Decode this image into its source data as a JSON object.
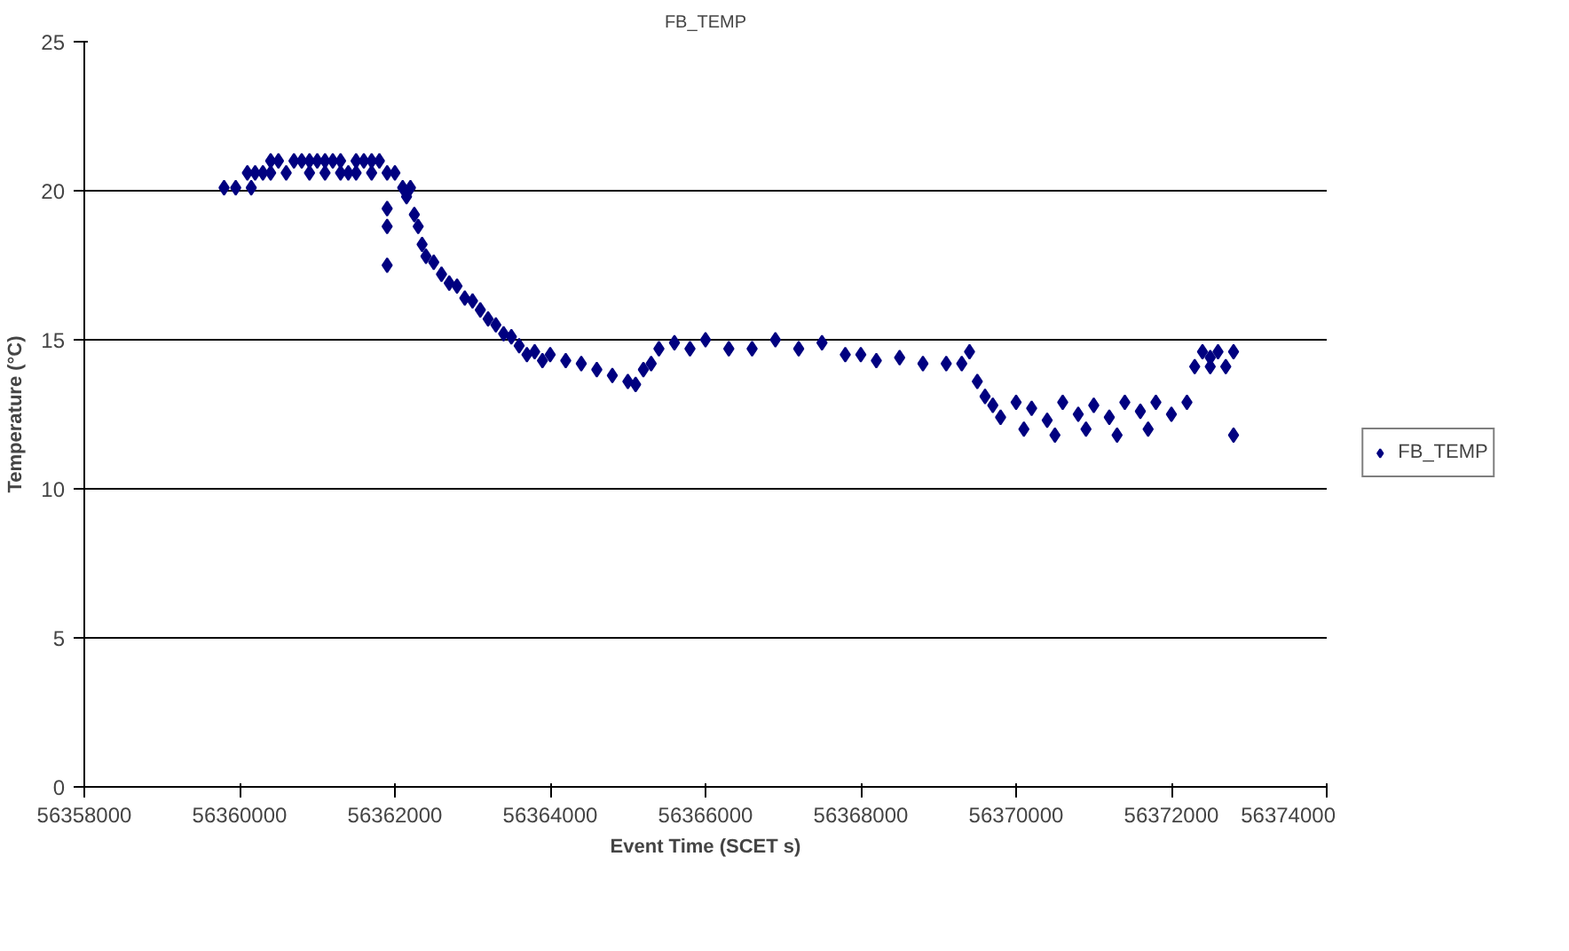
{
  "chart_data": {
    "type": "scatter",
    "title": "FB_TEMP",
    "xlabel": "Event Time (SCET s)",
    "ylabel": "Temperature (°C)",
    "xlim": [
      56358000,
      56374000
    ],
    "xticks": [
      56358000,
      56360000,
      56362000,
      56364000,
      56366000,
      56368000,
      56370000,
      56372000,
      56374000
    ],
    "ylim": [
      0,
      25
    ],
    "yticks": [
      0,
      5,
      10,
      15,
      20,
      25
    ],
    "grid": "y",
    "legend": "right",
    "marker": "diamond",
    "series": [
      {
        "name": "FB_TEMP",
        "color": "#000080",
        "x": [
          56359800,
          56359950,
          56360100,
          56360150,
          56360200,
          56360300,
          56360400,
          56360400,
          56360500,
          56360600,
          56360700,
          56360800,
          56360900,
          56361000,
          56361100,
          56361200,
          56361300,
          56361400,
          56361500,
          56361600,
          56361700,
          56361800,
          56360900,
          56361100,
          56361300,
          56361500,
          56361700,
          56361900,
          56361900,
          56361900,
          56361900,
          56362000,
          56362100,
          56362150,
          56362200,
          56362250,
          56362300,
          56362350,
          56362400,
          56362500,
          56362600,
          56362700,
          56362800,
          56362900,
          56363000,
          56363100,
          56363200,
          56363300,
          56363400,
          56363500,
          56363600,
          56363700,
          56363800,
          56363900,
          56364000,
          56364200,
          56364400,
          56364600,
          56364800,
          56365000,
          56365100,
          56365200,
          56365300,
          56365400,
          56365600,
          56365800,
          56366000,
          56366300,
          56366600,
          56366900,
          56367200,
          56367500,
          56367800,
          56368000,
          56368200,
          56368500,
          56368800,
          56369100,
          56369300,
          56369400,
          56369500,
          56369600,
          56369700,
          56369800,
          56370000,
          56370200,
          56370400,
          56370600,
          56370800,
          56371000,
          56371200,
          56371400,
          56371600,
          56371800,
          56372000,
          56372200,
          56370100,
          56370500,
          56370900,
          56371300,
          56371700,
          56372300,
          56372400,
          56372500,
          56372600,
          56372700,
          56372800,
          56372500,
          56372800
        ],
        "values": [
          20.1,
          20.1,
          20.6,
          20.1,
          20.6,
          20.6,
          20.6,
          21.0,
          21.0,
          20.6,
          21.0,
          21.0,
          21.0,
          21.0,
          20.6,
          21.0,
          21.0,
          20.6,
          21.0,
          21.0,
          20.6,
          21.0,
          20.6,
          21.0,
          20.6,
          20.6,
          21.0,
          20.6,
          19.4,
          18.8,
          17.5,
          20.6,
          20.1,
          19.8,
          20.1,
          19.2,
          18.8,
          18.2,
          17.8,
          17.6,
          17.2,
          16.9,
          16.8,
          16.4,
          16.3,
          16.0,
          15.7,
          15.5,
          15.2,
          15.1,
          14.8,
          14.5,
          14.6,
          14.3,
          14.5,
          14.3,
          14.2,
          14.0,
          13.8,
          13.6,
          13.5,
          14.0,
          14.2,
          14.7,
          14.9,
          14.7,
          15.0,
          14.7,
          14.7,
          15.0,
          14.7,
          14.9,
          14.5,
          14.5,
          14.3,
          14.4,
          14.2,
          14.2,
          14.2,
          14.6,
          13.6,
          13.1,
          12.8,
          12.4,
          12.9,
          12.7,
          12.3,
          12.9,
          12.5,
          12.8,
          12.4,
          12.9,
          12.6,
          12.9,
          12.5,
          12.9,
          12.0,
          11.8,
          12.0,
          11.8,
          12.0,
          14.1,
          14.6,
          14.4,
          14.6,
          14.1,
          14.6,
          14.1,
          11.8
        ]
      }
    ]
  }
}
